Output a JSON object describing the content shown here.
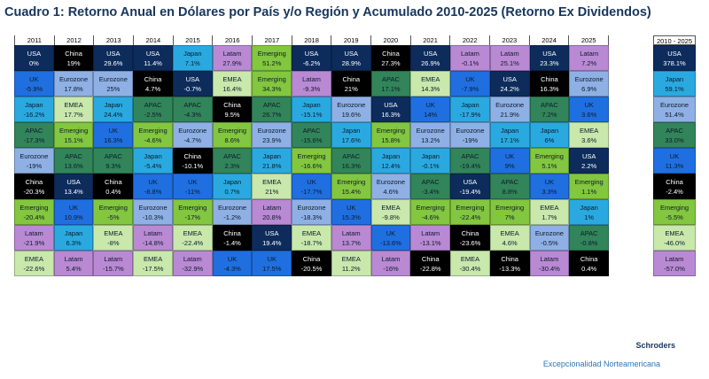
{
  "title": "Cuadro 1: Retorno Anual en Dólares por País y/o Región y Acumulado 2010-2025 (Retorno Ex Dividendos)",
  "footer": {
    "brand": "Schroders",
    "subtitle": "Excepcionalidad  Norteamericana"
  },
  "colors": {
    "USA": "#0d2c5c",
    "China": "#000000",
    "Japan": "#2aa9e0",
    "Eurozone": "#8fb0e4",
    "UK": "#1f6fe0",
    "EMEA": "#c8e8ac",
    "Emerging": "#83c63f",
    "APAC": "#32845a",
    "Latam": "#b989d3"
  },
  "chart_data": {
    "type": "table",
    "years": [
      "2011",
      "2012",
      "2013",
      "2014",
      "2015",
      "2016",
      "2017",
      "2018",
      "2019",
      "2020",
      "2021",
      "2022",
      "2023",
      "2024",
      "2025"
    ],
    "rows": [
      [
        [
          "USA",
          "0%"
        ],
        [
          "China",
          "19%"
        ],
        [
          "USA",
          "29.6%"
        ],
        [
          "USA",
          "11.4%"
        ],
        [
          "Japan",
          "7.1%"
        ],
        [
          "Latam",
          "27.9%"
        ],
        [
          "Emerging",
          "51.2%"
        ],
        [
          "USA",
          "-6.2%"
        ],
        [
          "USA",
          "28.9%"
        ],
        [
          "China",
          "27.3%"
        ],
        [
          "USA",
          "26.9%"
        ],
        [
          "Latam",
          "-0.1%"
        ],
        [
          "Latam",
          "25.1%"
        ],
        [
          "USA",
          "23.3%"
        ],
        [
          "Latam",
          "7.2%"
        ]
      ],
      [
        [
          "UK",
          "-5.9%"
        ],
        [
          "Eurozone",
          "17.8%"
        ],
        [
          "Eurozone",
          "25%"
        ],
        [
          "China",
          "4.7%"
        ],
        [
          "USA",
          "-0.7%"
        ],
        [
          "EMEA",
          "16.4%"
        ],
        [
          "Emerging",
          "34.3%"
        ],
        [
          "Latam",
          "-9.3%"
        ],
        [
          "China",
          "21%"
        ],
        [
          "APAC",
          "17.1%"
        ],
        [
          "EMEA",
          "14.3%"
        ],
        [
          "UK",
          "-7.9%"
        ],
        [
          "USA",
          "24.2%"
        ],
        [
          "China",
          "16.3%"
        ],
        [
          "Eurozone",
          "6.9%"
        ]
      ],
      [
        [
          "Japan",
          "-16.2%"
        ],
        [
          "EMEA",
          "17.7%"
        ],
        [
          "Japan",
          "24.4%"
        ],
        [
          "APAC",
          "-2.5%"
        ],
        [
          "APAC",
          "-4.3%"
        ],
        [
          "China",
          "9.5%"
        ],
        [
          "APAC",
          "26.7%"
        ],
        [
          "Japan",
          "-15.1%"
        ],
        [
          "Eurozone",
          "19.6%"
        ],
        [
          "USA",
          "16.3%"
        ],
        [
          "UK",
          "14%"
        ],
        [
          "Japan",
          "-17.9%"
        ],
        [
          "Eurozone",
          "21.9%"
        ],
        [
          "APAC",
          "7.2%"
        ],
        [
          "UK",
          "3.6%"
        ]
      ],
      [
        [
          "APAC",
          "-17.3%"
        ],
        [
          "Emerging",
          "15.1%"
        ],
        [
          "UK",
          "16.3%"
        ],
        [
          "Emerging",
          "-4.6%"
        ],
        [
          "Eurozone",
          "-4.7%"
        ],
        [
          "Emerging",
          "8.6%"
        ],
        [
          "Eurozone",
          "23.9%"
        ],
        [
          "APAC",
          "-15.6%"
        ],
        [
          "Japan",
          "17.6%"
        ],
        [
          "Emerging",
          "15.8%"
        ],
        [
          "Eurozone",
          "13.2%"
        ],
        [
          "Eurozone",
          "-19%"
        ],
        [
          "Japan",
          "17.1%"
        ],
        [
          "Japan",
          "6%"
        ],
        [
          "EMEA",
          "3.6%"
        ]
      ],
      [
        [
          "Eurozone",
          "-19%"
        ],
        [
          "APAC",
          "13.6%"
        ],
        [
          "APAC",
          "9.3%"
        ],
        [
          "Japan",
          "-5.4%"
        ],
        [
          "China",
          "-10.1%"
        ],
        [
          "APAC",
          "2.3%"
        ],
        [
          "Japan",
          "21.8%"
        ],
        [
          "Emerging",
          "-16.6%"
        ],
        [
          "APAC",
          "16.3%"
        ],
        [
          "Japan",
          "12.4%"
        ],
        [
          "Japan",
          "-0.1%"
        ],
        [
          "APAC",
          "-19.4%"
        ],
        [
          "UK",
          "9%"
        ],
        [
          "Emerging",
          "5.1%"
        ],
        [
          "USA",
          "2.2%"
        ]
      ],
      [
        [
          "China",
          "-20.3%"
        ],
        [
          "USA",
          "13.4%"
        ],
        [
          "China",
          "0.4%"
        ],
        [
          "UK",
          "-8.8%"
        ],
        [
          "UK",
          "-11%"
        ],
        [
          "Japan",
          "0.7%"
        ],
        [
          "EMEA",
          "21%"
        ],
        [
          "UK",
          "-17.7%"
        ],
        [
          "Emerging",
          "15.4%"
        ],
        [
          "Eurozone",
          "4.6%"
        ],
        [
          "APAC",
          "-3.4%"
        ],
        [
          "USA",
          "-19.4%"
        ],
        [
          "APAC",
          "8.8%"
        ],
        [
          "UK",
          "3.3%"
        ],
        [
          "Emerging",
          "1.1%"
        ]
      ],
      [
        [
          "Emerging",
          "-20.4%"
        ],
        [
          "UK",
          "10.9%"
        ],
        [
          "Emerging",
          "-5%"
        ],
        [
          "Eurozone",
          "-10.3%"
        ],
        [
          "Emerging",
          "-17%"
        ],
        [
          "Eurozone",
          "-1.2%"
        ],
        [
          "Latam",
          "20.8%"
        ],
        [
          "Eurozone",
          "-18.3%"
        ],
        [
          "UK",
          "15.3%"
        ],
        [
          "EMEA",
          "-9.8%"
        ],
        [
          "Emerging",
          "-4.6%"
        ],
        [
          "Emerging",
          "-22.4%"
        ],
        [
          "Emerging",
          "7%"
        ],
        [
          "EMEA",
          "1.7%"
        ],
        [
          "Japan",
          "1%"
        ]
      ],
      [
        [
          "Latam",
          "-21.9%"
        ],
        [
          "Japan",
          "6.3%"
        ],
        [
          "EMEA",
          "-8%"
        ],
        [
          "Latam",
          "-14.8%"
        ],
        [
          "EMEA",
          "-22.4%"
        ],
        [
          "China",
          "-1.4%"
        ],
        [
          "USA",
          "19.4%"
        ],
        [
          "EMEA",
          "-18.7%"
        ],
        [
          "Latam",
          "13.7%"
        ],
        [
          "UK",
          "-13.6%"
        ],
        [
          "Latam",
          "-13.1%"
        ],
        [
          "China",
          "-23.6%"
        ],
        [
          "EMEA",
          "4.6%"
        ],
        [
          "Eurozone",
          "-0.5%"
        ],
        [
          "APAC",
          "-0.8%"
        ]
      ],
      [
        [
          "EMEA",
          "-22.6%"
        ],
        [
          "Latam",
          "5.4%"
        ],
        [
          "Latam",
          "-15.7%"
        ],
        [
          "EMEA",
          "-17.5%"
        ],
        [
          "Latam",
          "-32.9%"
        ],
        [
          "UK",
          "-4.3%"
        ],
        [
          "UK",
          "17.5%"
        ],
        [
          "China",
          "-20.5%"
        ],
        [
          "EMEA",
          "11.2%"
        ],
        [
          "Latam",
          "-16%"
        ],
        [
          "China",
          "-22.8%"
        ],
        [
          "EMEA",
          "-30.4%"
        ],
        [
          "China",
          "-13.3%"
        ],
        [
          "Latam",
          "-30.4%"
        ],
        [
          "China",
          "0.4%"
        ]
      ]
    ],
    "cumulative_header": "2010 - 2025",
    "cumulative": [
      [
        "USA",
        "378.1%"
      ],
      [
        "Japan",
        "59.1%"
      ],
      [
        "Eurozone",
        "51.4%"
      ],
      [
        "APAC",
        "33.0%"
      ],
      [
        "UK",
        "11.3%"
      ],
      [
        "China",
        "-2.4%"
      ],
      [
        "Emerging",
        "-5.5%"
      ],
      [
        "EMEA",
        "-46.0%"
      ],
      [
        "Latam",
        "-57.0%"
      ]
    ]
  }
}
